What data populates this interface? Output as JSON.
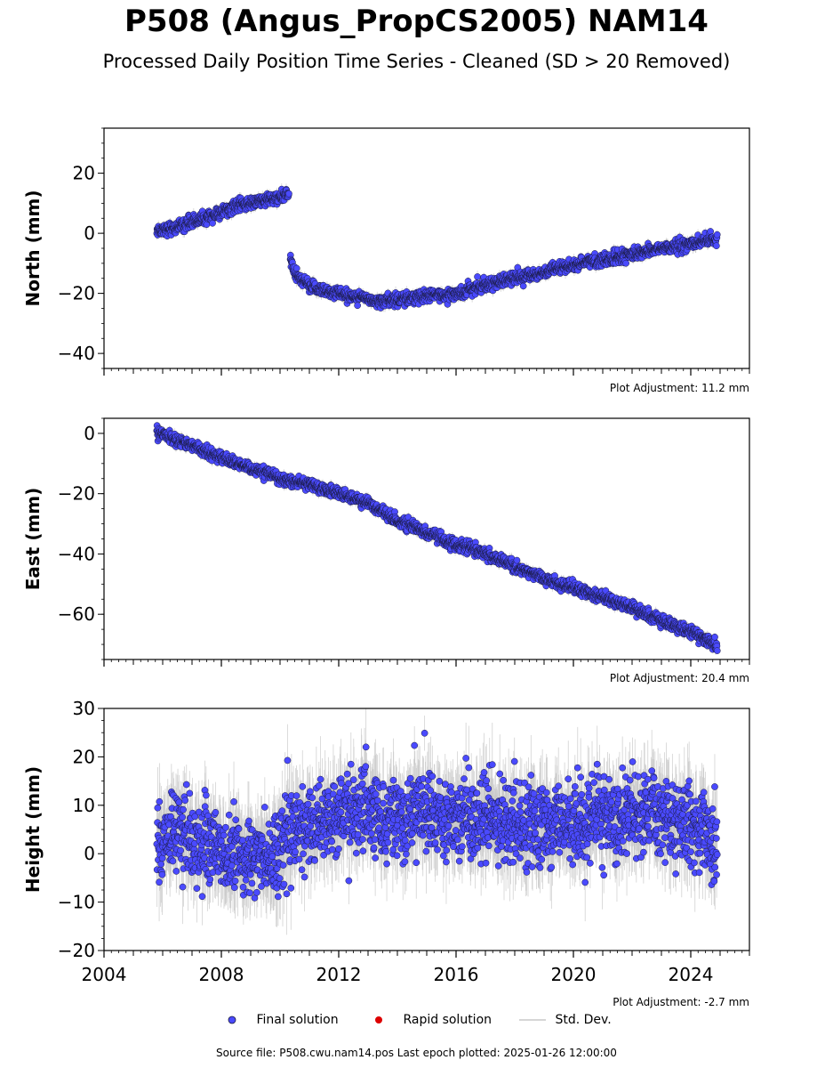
{
  "title": "P508 (Angus_PropCS2005) NAM14",
  "subtitle": "Processed Daily Position Time Series - Cleaned (SD > 20 Removed)",
  "source_text": "Source file: P508.cwu.nam14.pos  Last epoch plotted: 2025-01-26 12:00:00",
  "legend": {
    "final": "Final solution",
    "rapid": "Rapid solution",
    "stddev": "Std. Dev."
  },
  "colors": {
    "final": "#4a4aff",
    "rapid": "#dd0000",
    "stddev": "#c8c8c8",
    "marker_edge": "#1a1a40"
  },
  "chart_data": [
    {
      "type": "scatter",
      "ylabel": "North (mm)",
      "adjustment": "Plot Adjustment: 11.2 mm",
      "xlim": [
        2004,
        2026
      ],
      "ylim": [
        -45,
        35
      ],
      "yticks": [
        -40,
        -20,
        0,
        20
      ],
      "xticks": [
        2004,
        2008,
        2012,
        2016,
        2020,
        2024
      ],
      "show_xticklabels": false,
      "series": [
        {
          "segments": [
            {
              "x": [
                2005.8,
                2006.5,
                2007.0,
                2007.5,
                2008.0,
                2008.5,
                2009.0,
                2009.5,
                2010.0,
                2010.3
              ],
              "y": [
                1,
                2,
                4,
                5,
                7,
                9,
                10,
                11,
                12,
                13
              ]
            },
            {
              "x": [
                2010.35,
                2010.5,
                2010.8,
                2011.0,
                2011.5,
                2012.0,
                2012.5,
                2013.0,
                2013.5,
                2014.0,
                2014.5,
                2015.0,
                2015.5,
                2016.0,
                2016.3,
                2016.5,
                2017.0,
                2017.5,
                2018.0,
                2018.5,
                2019.0,
                2019.5,
                2020.0,
                2020.5,
                2021.0,
                2021.5,
                2022.0,
                2022.5,
                2023.0,
                2023.5,
                2024.0,
                2024.5,
                2024.9
              ],
              "y": [
                -8,
                -14,
                -16,
                -17.5,
                -19,
                -20,
                -21,
                -22,
                -22.5,
                -22,
                -21.5,
                -21,
                -20.5,
                -20,
                -20,
                -18.5,
                -17,
                -16,
                -15,
                -14,
                -13,
                -12,
                -10.5,
                -9.5,
                -9,
                -8,
                -7,
                -6,
                -5,
                -4.5,
                -3.5,
                -2.5,
                -2
              ]
            }
          ],
          "noise": 1.0,
          "sd": 1.4
        }
      ]
    },
    {
      "type": "scatter",
      "ylabel": "East (mm)",
      "adjustment": "Plot Adjustment: 20.4 mm",
      "xlim": [
        2004,
        2026
      ],
      "ylim": [
        -75,
        5
      ],
      "yticks": [
        -60,
        -40,
        -20,
        0
      ],
      "xticks": [
        2004,
        2008,
        2012,
        2016,
        2020,
        2024
      ],
      "show_xticklabels": false,
      "series": [
        {
          "segments": [
            {
              "x": [
                2005.8,
                2006.5,
                2007.0,
                2007.5,
                2008.0,
                2008.5,
                2009.0,
                2009.5,
                2010.0,
                2010.5,
                2011.0,
                2011.5,
                2012.0,
                2012.5,
                2013.0,
                2013.5,
                2014.0,
                2014.5,
                2015.0,
                2015.5,
                2016.0,
                2016.5,
                2017.0,
                2017.5,
                2018.0,
                2018.5,
                2019.0,
                2019.5,
                2020.0,
                2020.5,
                2021.0,
                2021.5,
                2022.0,
                2022.5,
                2023.0,
                2023.5,
                2024.0,
                2024.5,
                2024.9
              ],
              "y": [
                0,
                -2,
                -4,
                -6,
                -8,
                -10,
                -12,
                -13,
                -15,
                -16,
                -17,
                -18.5,
                -20,
                -21.5,
                -23,
                -26,
                -29,
                -31,
                -33,
                -35,
                -37,
                -38,
                -40,
                -42,
                -44,
                -46,
                -48,
                -50,
                -51,
                -53,
                -54.5,
                -56,
                -58,
                -60,
                -62,
                -64,
                -66,
                -68,
                -71
              ]
            }
          ],
          "noise": 0.9,
          "sd": 1.3
        }
      ]
    },
    {
      "type": "scatter",
      "ylabel": "Height (mm)",
      "adjustment": "Plot Adjustment: -2.7 mm",
      "xlim": [
        2004,
        2026
      ],
      "ylim": [
        -20,
        30
      ],
      "yticks": [
        -20,
        -10,
        0,
        10,
        20,
        30
      ],
      "xticks": [
        2004,
        2008,
        2012,
        2016,
        2020,
        2024
      ],
      "xticklabels": [
        "2004",
        "2008",
        "2012",
        "2016",
        "2020",
        "2024"
      ],
      "show_xticklabels": true,
      "series": [
        {
          "segments": [
            {
              "x": [
                2005.8,
                2006.5,
                2007.0,
                2007.5,
                2008.0,
                2008.5,
                2009.0,
                2009.5,
                2010.0,
                2010.4,
                2011.0,
                2011.5,
                2012.0,
                2012.5,
                2013.0,
                2013.5,
                2014.0,
                2014.5,
                2015.0,
                2015.5,
                2016.0,
                2016.5,
                2017.0,
                2017.5,
                2018.0,
                2018.5,
                2019.0,
                2019.5,
                2020.0,
                2020.5,
                2021.0,
                2021.5,
                2022.0,
                2022.5,
                2023.0,
                2023.5,
                2024.0,
                2024.5,
                2024.9
              ],
              "y": [
                2,
                5,
                3,
                2,
                1,
                0,
                -1,
                0,
                0,
                5,
                6,
                7,
                8,
                9,
                8,
                7,
                8,
                9,
                9,
                8,
                8,
                8,
                7,
                7,
                7,
                6,
                6,
                6,
                6,
                6,
                7,
                7,
                8,
                8,
                7,
                6,
                6,
                5,
                2
              ]
            }
          ],
          "noise": 4.2,
          "sd": 6.0
        }
      ]
    }
  ]
}
